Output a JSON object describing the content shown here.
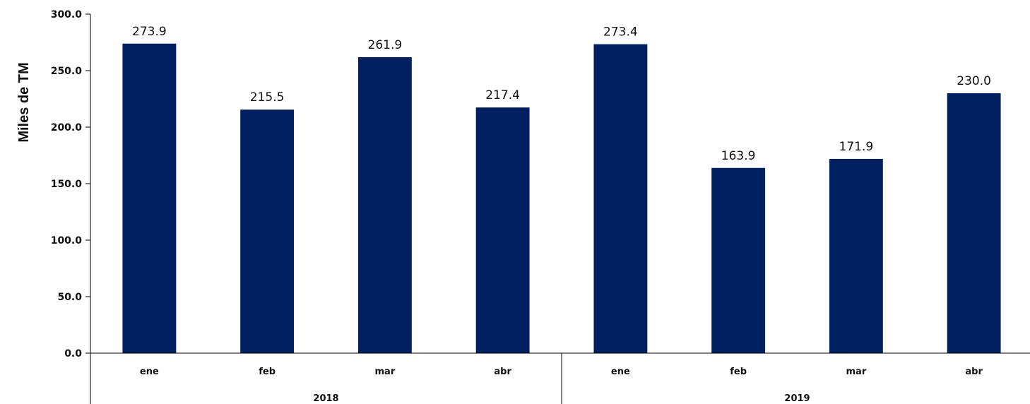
{
  "chart_data": {
    "type": "bar",
    "ylabel": "Miles de TM",
    "ylim": [
      0,
      300
    ],
    "yticks": [
      "0.0",
      "50.0",
      "100.0",
      "150.0",
      "200.0",
      "250.0",
      "300.0"
    ],
    "ytick_values": [
      0,
      50,
      100,
      150,
      200,
      250,
      300
    ],
    "grid": false,
    "bar_color": "#002060",
    "groups": [
      {
        "label": "2018",
        "categories": [
          "ene",
          "feb",
          "mar",
          "abr"
        ],
        "values": [
          273.9,
          215.5,
          261.9,
          217.4
        ],
        "labels": [
          "273.9",
          "215.5",
          "261.9",
          "217.4"
        ]
      },
      {
        "label": "2019",
        "categories": [
          "ene",
          "feb",
          "mar",
          "abr"
        ],
        "values": [
          273.4,
          163.9,
          171.9,
          230.0
        ],
        "labels": [
          "273.4",
          "163.9",
          "171.9",
          "230.0"
        ]
      }
    ]
  }
}
